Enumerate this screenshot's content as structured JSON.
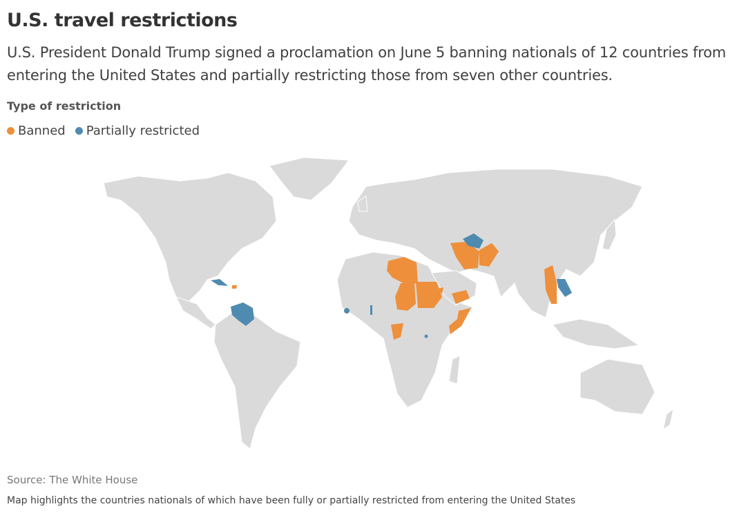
{
  "header": {
    "title": "U.S. travel restrictions",
    "subtitle": "U.S. President Donald Trump signed a proclamation on June 5 banning nationals of 12 countries from entering the United States and partially restricting those from seven other countries."
  },
  "legend": {
    "title": "Type of restriction",
    "items": [
      {
        "label": "Banned",
        "color": "#ee8f3b"
      },
      {
        "label": "Partially restricted",
        "color": "#4f8bb0"
      }
    ]
  },
  "footer": {
    "source": "Source: The White House",
    "note": "Map highlights the countries nationals of which have been fully or partially restricted from entering the United States"
  }
}
